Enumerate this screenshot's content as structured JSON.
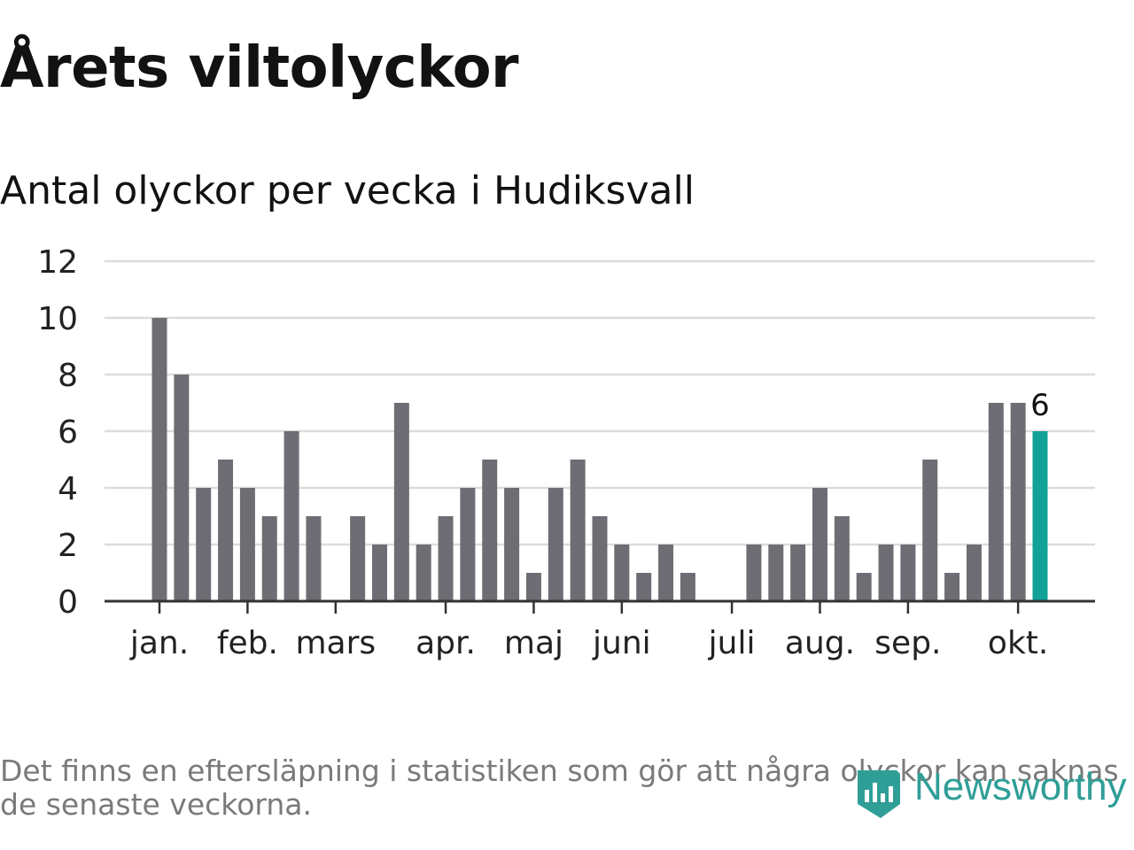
{
  "title": "Årets viltolyckor",
  "subtitle": "Antal olyckor per vecka i Hudiksvall",
  "footnote": "Det finns en eftersläpning i statistiken som gör att några olyckor kan saknas de senaste veckorna.",
  "brand": {
    "name": "Newsworthy",
    "color": "#2f9e97"
  },
  "colors": {
    "bar": "#6e6d73",
    "highlight": "#12a197",
    "grid": "#dcdcdc",
    "axis": "#333333",
    "text": "#222222"
  },
  "chart_data": {
    "type": "bar",
    "title": "Antal olyckor per vecka i Hudiksvall",
    "xlabel": "",
    "ylabel": "",
    "ylim": [
      0,
      12
    ],
    "yticks": [
      0,
      2,
      4,
      6,
      8,
      10,
      12
    ],
    "values": [
      10,
      8,
      4,
      5,
      4,
      3,
      6,
      3,
      0,
      3,
      2,
      7,
      2,
      3,
      4,
      5,
      4,
      1,
      4,
      5,
      3,
      2,
      1,
      2,
      1,
      0,
      0,
      2,
      2,
      2,
      4,
      3,
      1,
      2,
      2,
      5,
      1,
      2,
      7,
      7,
      6
    ],
    "month_labels": [
      {
        "label": "jan.",
        "week_index": 0
      },
      {
        "label": "feb.",
        "week_index": 4
      },
      {
        "label": "mars",
        "week_index": 8
      },
      {
        "label": "apr.",
        "week_index": 13
      },
      {
        "label": "maj",
        "week_index": 17
      },
      {
        "label": "juni",
        "week_index": 21
      },
      {
        "label": "juli",
        "week_index": 26
      },
      {
        "label": "aug.",
        "week_index": 30
      },
      {
        "label": "sep.",
        "week_index": 34
      },
      {
        "label": "okt.",
        "week_index": 39
      }
    ],
    "highlight_index": 40,
    "highlight_label": "6"
  }
}
